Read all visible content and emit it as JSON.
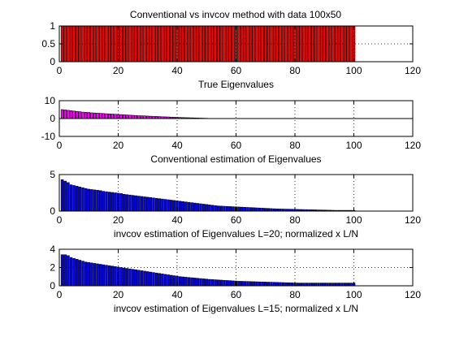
{
  "figure_title": "Conventional vs invcov method with data 100x50",
  "chart_data": [
    {
      "type": "bar",
      "xlabel": "True Eigenvalues",
      "xlim": [
        0,
        120
      ],
      "ylim": [
        0,
        1
      ],
      "xticks": [
        "0",
        "20",
        "40",
        "60",
        "80",
        "100",
        "120"
      ],
      "yticks": [
        "0",
        "0.5",
        "1"
      ],
      "bar_color": "#ff0000",
      "grid": true,
      "x": [
        1,
        2,
        3,
        4,
        5,
        6,
        7,
        8,
        9,
        10,
        11,
        12,
        13,
        14,
        15,
        16,
        17,
        18,
        19,
        20,
        21,
        22,
        23,
        24,
        25,
        26,
        27,
        28,
        29,
        30,
        31,
        32,
        33,
        34,
        35,
        36,
        37,
        38,
        39,
        40,
        41,
        42,
        43,
        44,
        45,
        46,
        47,
        48,
        49,
        50,
        51,
        52,
        53,
        54,
        55,
        56,
        57,
        58,
        59,
        60,
        61,
        62,
        63,
        64,
        65,
        66,
        67,
        68,
        69,
        70,
        71,
        72,
        73,
        74,
        75,
        76,
        77,
        78,
        79,
        80,
        81,
        82,
        83,
        84,
        85,
        86,
        87,
        88,
        89,
        90,
        91,
        92,
        93,
        94,
        95,
        96,
        97,
        98,
        99,
        100
      ],
      "values": [
        1,
        1,
        1,
        1,
        1,
        1,
        1,
        1,
        1,
        1,
        1,
        1,
        1,
        1,
        1,
        1,
        1,
        1,
        1,
        1,
        1,
        1,
        1,
        1,
        1,
        1,
        1,
        1,
        1,
        1,
        1,
        1,
        1,
        1,
        1,
        1,
        1,
        1,
        1,
        1,
        1,
        1,
        1,
        1,
        1,
        1,
        1,
        1,
        1,
        1,
        1,
        1,
        1,
        1,
        1,
        1,
        1,
        1,
        1,
        1,
        1,
        1,
        1,
        1,
        1,
        1,
        1,
        1,
        1,
        1,
        1,
        1,
        1,
        1,
        1,
        1,
        1,
        1,
        1,
        1,
        1,
        1,
        1,
        1,
        1,
        1,
        1,
        1,
        1,
        1,
        1,
        1,
        1,
        1,
        1,
        1,
        1,
        1,
        1,
        1
      ]
    },
    {
      "type": "bar",
      "xlabel": "Conventional estimation of Eigenvalues",
      "xlim": [
        0,
        120
      ],
      "ylim": [
        -10,
        10
      ],
      "xticks": [
        "0",
        "20",
        "40",
        "60",
        "80",
        "100",
        "120"
      ],
      "yticks": [
        "-10",
        "0",
        "10"
      ],
      "bar_color": "#ff00ff",
      "grid": true,
      "x": [
        1,
        2,
        3,
        4,
        5,
        6,
        7,
        8,
        9,
        10,
        11,
        12,
        13,
        14,
        15,
        16,
        17,
        18,
        19,
        20,
        21,
        22,
        23,
        24,
        25,
        26,
        27,
        28,
        29,
        30,
        31,
        32,
        33,
        34,
        35,
        36,
        37,
        38,
        39,
        40,
        41,
        42,
        43,
        44,
        45,
        46,
        47,
        48,
        49,
        50,
        51,
        52,
        53,
        54,
        55,
        56,
        57,
        58,
        59,
        60,
        61,
        62,
        63,
        64,
        65,
        66,
        67,
        68,
        69,
        70,
        71,
        72,
        73,
        74,
        75,
        76,
        77,
        78,
        79,
        80,
        81,
        82,
        83,
        84,
        85,
        86,
        87,
        88,
        89,
        90,
        91,
        92,
        93,
        94,
        95,
        96,
        97,
        98,
        99,
        100
      ],
      "values": [
        5.0,
        4.8,
        4.6,
        4.4,
        4.2,
        4.0,
        3.8,
        3.6,
        3.5,
        3.4,
        3.2,
        3.1,
        3.0,
        2.9,
        2.8,
        2.7,
        2.6,
        2.5,
        2.4,
        2.3,
        2.2,
        2.1,
        2.0,
        1.9,
        1.8,
        1.7,
        1.6,
        1.55,
        1.5,
        1.4,
        1.3,
        1.25,
        1.2,
        1.1,
        1.0,
        0.95,
        0.9,
        0.8,
        0.75,
        0.7,
        0.6,
        0.55,
        0.5,
        0.45,
        0.4,
        0.35,
        0.3,
        0.25,
        0.2,
        0.15,
        0,
        0,
        0,
        0,
        0,
        0,
        0,
        0,
        0,
        0,
        0,
        0,
        0,
        0,
        0,
        0,
        0,
        0,
        0,
        0,
        0,
        0,
        0,
        0,
        0,
        0,
        0,
        0,
        0,
        0,
        0,
        0,
        0,
        0,
        0,
        0,
        0,
        0,
        0,
        0,
        0,
        0,
        0,
        0,
        0,
        0,
        0,
        0,
        0,
        0
      ]
    },
    {
      "type": "bar",
      "xlabel": "invcov estimation of Eigenvalues L=20; normalized x L/N",
      "xlim": [
        0,
        120
      ],
      "ylim": [
        0,
        5
      ],
      "xticks": [
        "0",
        "20",
        "40",
        "60",
        "80",
        "100",
        "120"
      ],
      "yticks": [
        "0",
        "5"
      ],
      "bar_color": "#0000ff",
      "grid": true,
      "x": [
        1,
        2,
        3,
        4,
        5,
        6,
        7,
        8,
        9,
        10,
        11,
        12,
        13,
        14,
        15,
        16,
        17,
        18,
        19,
        20,
        21,
        22,
        23,
        24,
        25,
        26,
        27,
        28,
        29,
        30,
        31,
        32,
        33,
        34,
        35,
        36,
        37,
        38,
        39,
        40,
        41,
        42,
        43,
        44,
        45,
        46,
        47,
        48,
        49,
        50,
        51,
        52,
        53,
        54,
        55,
        56,
        57,
        58,
        59,
        60,
        61,
        62,
        63,
        64,
        65,
        66,
        67,
        68,
        69,
        70,
        71,
        72,
        73,
        74,
        75,
        76,
        77,
        78,
        79,
        80,
        81,
        82,
        83,
        84,
        85,
        86,
        87,
        88,
        89,
        90,
        91,
        92,
        93,
        94,
        95,
        96,
        97,
        98,
        99,
        100
      ],
      "values": [
        4.3,
        4.1,
        3.9,
        3.6,
        3.5,
        3.4,
        3.3,
        3.2,
        3.1,
        3.0,
        2.95,
        2.9,
        2.85,
        2.8,
        2.7,
        2.65,
        2.6,
        2.55,
        2.5,
        2.45,
        2.4,
        2.3,
        2.25,
        2.2,
        2.15,
        2.1,
        2.05,
        2.0,
        1.95,
        1.9,
        1.85,
        1.8,
        1.75,
        1.7,
        1.65,
        1.6,
        1.55,
        1.5,
        1.45,
        1.4,
        1.35,
        1.3,
        1.25,
        1.2,
        1.15,
        1.1,
        1.05,
        1.0,
        0.95,
        0.9,
        0.85,
        0.8,
        0.75,
        0.7,
        0.68,
        0.66,
        0.64,
        0.62,
        0.6,
        0.58,
        0.56,
        0.54,
        0.52,
        0.5,
        0.48,
        0.46,
        0.44,
        0.42,
        0.4,
        0.38,
        0.36,
        0.34,
        0.32,
        0.3,
        0.29,
        0.28,
        0.27,
        0.26,
        0.25,
        0.24,
        0.23,
        0.22,
        0.21,
        0.2,
        0.19,
        0.18,
        0.17,
        0.16,
        0.15,
        0.14,
        0.13,
        0.12,
        0.11,
        0.1,
        0.1,
        0.1,
        0.1,
        0.1,
        0.1,
        0.1
      ]
    },
    {
      "type": "bar",
      "xlabel": "invcov estimation of Eigenvalues L=15; normalized x L/N",
      "xlim": [
        0,
        120
      ],
      "ylim": [
        0,
        4
      ],
      "xticks": [
        "0",
        "20",
        "40",
        "60",
        "80",
        "100",
        "120"
      ],
      "yticks": [
        "0",
        "2",
        "4"
      ],
      "bar_color": "#0000ff",
      "grid": true,
      "x": [
        1,
        2,
        3,
        4,
        5,
        6,
        7,
        8,
        9,
        10,
        11,
        12,
        13,
        14,
        15,
        16,
        17,
        18,
        19,
        20,
        21,
        22,
        23,
        24,
        25,
        26,
        27,
        28,
        29,
        30,
        31,
        32,
        33,
        34,
        35,
        36,
        37,
        38,
        39,
        40,
        41,
        42,
        43,
        44,
        45,
        46,
        47,
        48,
        49,
        50,
        51,
        52,
        53,
        54,
        55,
        56,
        57,
        58,
        59,
        60,
        61,
        62,
        63,
        64,
        65,
        66,
        67,
        68,
        69,
        70,
        71,
        72,
        73,
        74,
        75,
        76,
        77,
        78,
        79,
        80,
        81,
        82,
        83,
        84,
        85,
        86,
        87,
        88,
        89,
        90,
        91,
        92,
        93,
        94,
        95,
        96,
        97,
        98,
        99,
        100
      ],
      "values": [
        3.4,
        3.4,
        3.3,
        3.1,
        3.0,
        2.9,
        2.8,
        2.7,
        2.6,
        2.55,
        2.5,
        2.45,
        2.4,
        2.35,
        2.3,
        2.25,
        2.2,
        2.15,
        2.1,
        2.05,
        2.0,
        1.95,
        1.9,
        1.85,
        1.8,
        1.75,
        1.7,
        1.65,
        1.6,
        1.55,
        1.5,
        1.45,
        1.4,
        1.35,
        1.3,
        1.25,
        1.2,
        1.15,
        1.1,
        1.05,
        1.0,
        0.97,
        0.94,
        0.91,
        0.88,
        0.85,
        0.82,
        0.79,
        0.76,
        0.73,
        0.7,
        0.68,
        0.66,
        0.64,
        0.62,
        0.6,
        0.58,
        0.56,
        0.54,
        0.52,
        0.5,
        0.49,
        0.48,
        0.47,
        0.46,
        0.45,
        0.44,
        0.43,
        0.42,
        0.41,
        0.4,
        0.39,
        0.38,
        0.37,
        0.36,
        0.35,
        0.34,
        0.33,
        0.32,
        0.31,
        0.3,
        0.3,
        0.3,
        0.3,
        0.3,
        0.3,
        0.3,
        0.3,
        0.3,
        0.3,
        0.3,
        0.3,
        0.3,
        0.3,
        0.3,
        0.3,
        0.3,
        0.3,
        0.3,
        0.3
      ]
    }
  ]
}
